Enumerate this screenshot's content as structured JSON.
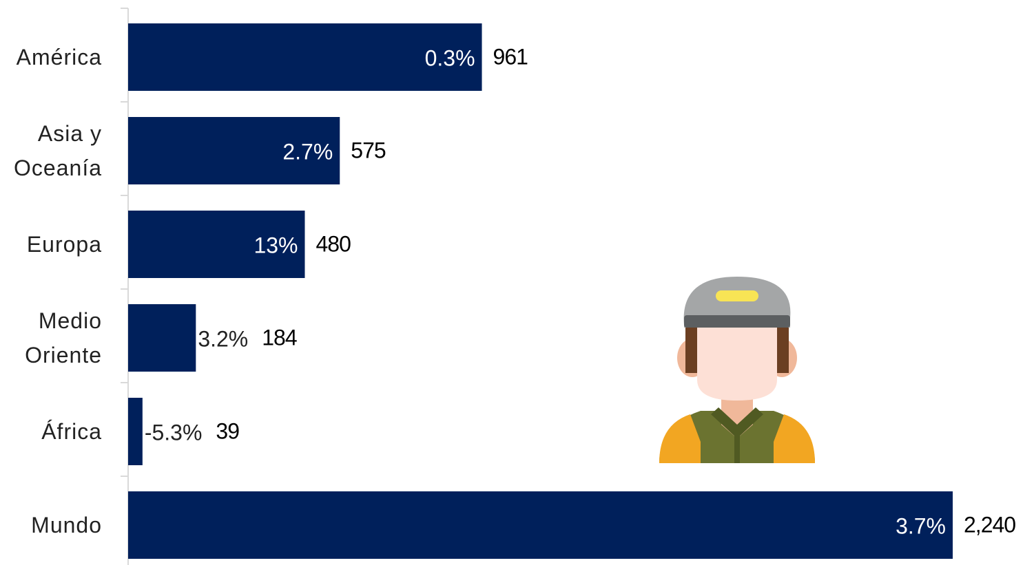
{
  "chart_data": {
    "type": "bar",
    "orientation": "horizontal",
    "categories": [
      "América",
      "Asia y Oceanía",
      "Europa",
      "Medio Oriente",
      "África",
      "Mundo"
    ],
    "values": [
      961,
      575,
      480,
      184,
      39,
      2240
    ],
    "value_labels": [
      "961",
      "575",
      "480",
      "184",
      "39",
      "2,240"
    ],
    "growth_labels": [
      "0.3%",
      "2.7%",
      "13%",
      "3.2%",
      "-5.3%",
      "3.7%"
    ],
    "color": "#00205b"
  }
}
